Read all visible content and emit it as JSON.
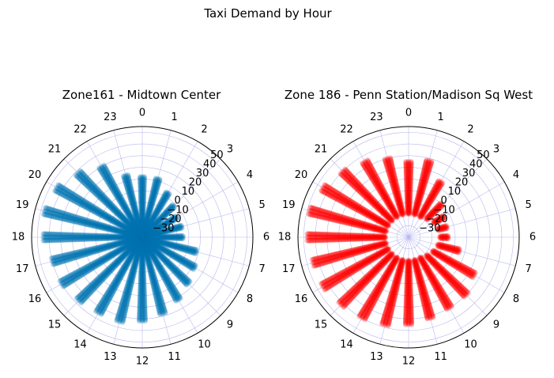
{
  "figure": {
    "suptitle": "Taxi Demand by Hour"
  },
  "chart_data": [
    {
      "type": "scatter",
      "projection": "polar",
      "title": "Zone161 - Midtown Center",
      "theta_tick_labels": [
        "0",
        "1",
        "2",
        "3",
        "4",
        "5",
        "6",
        "7",
        "8",
        "9",
        "10",
        "11",
        "12",
        "13",
        "14",
        "15",
        "16",
        "17",
        "18",
        "19",
        "20",
        "21",
        "22",
        "23"
      ],
      "r_tick_labels": [
        "−30",
        "−20",
        "−10",
        "0",
        "10",
        "20",
        "30",
        "40",
        "50"
      ],
      "rlim": [
        -40,
        55
      ],
      "theta_zero_location": "top",
      "theta_direction": "clockwise",
      "grid": true,
      "marker_color": "#0072b2",
      "series": [
        {
          "hours": [
            0,
            1,
            2,
            3,
            4,
            5,
            6,
            7,
            8,
            9,
            10,
            11,
            12,
            13,
            14,
            15,
            16,
            17,
            18,
            19,
            20,
            21,
            22,
            23
          ],
          "r_min": [
            -40,
            -40,
            -40,
            -40,
            -40,
            -40,
            -40,
            -40,
            -40,
            -40,
            -40,
            -40,
            -40,
            -40,
            -40,
            -40,
            -40,
            -40,
            -40,
            -40,
            -40,
            -40,
            -40,
            -40
          ],
          "r_max": [
            12,
            12,
            4,
            -2,
            -6,
            -5,
            -5,
            8,
            12,
            16,
            22,
            28,
            32,
            35,
            35,
            37,
            40,
            40,
            45,
            47,
            45,
            38,
            30,
            15
          ]
        }
      ]
    },
    {
      "type": "scatter",
      "projection": "polar",
      "title": "Zone 186 - Penn Station/Madison Sq West",
      "theta_tick_labels": [
        "0",
        "1",
        "2",
        "3",
        "4",
        "5",
        "6",
        "7",
        "8",
        "9",
        "10",
        "11",
        "12",
        "13",
        "14",
        "15",
        "16",
        "17",
        "18",
        "19",
        "20",
        "21",
        "22",
        "23"
      ],
      "r_tick_labels": [
        "−30",
        "−20",
        "−10",
        "0",
        "10",
        "20",
        "30",
        "40",
        "50"
      ],
      "rlim": [
        -40,
        55
      ],
      "theta_zero_location": "top",
      "theta_direction": "clockwise",
      "grid": true,
      "marker_color": "#ff0000",
      "series": [
        {
          "hours": [
            0,
            1,
            2,
            3,
            4,
            5,
            6,
            7,
            8,
            9,
            10,
            11,
            12,
            13,
            14,
            15,
            16,
            17,
            18,
            19,
            20,
            21,
            22,
            23
          ],
          "r_min": [
            -20,
            -20,
            -20,
            -18,
            -15,
            -14,
            -13,
            -14,
            -16,
            -18,
            -20,
            -20,
            -20,
            -20,
            -20,
            -20,
            -20,
            -20,
            -20,
            -20,
            -20,
            -20,
            -20,
            -20
          ],
          "r_max": [
            25,
            28,
            15,
            0,
            -5,
            -6,
            -6,
            5,
            25,
            30,
            30,
            32,
            35,
            38,
            40,
            42,
            45,
            45,
            47,
            48,
            45,
            40,
            35,
            30
          ]
        }
      ]
    }
  ]
}
